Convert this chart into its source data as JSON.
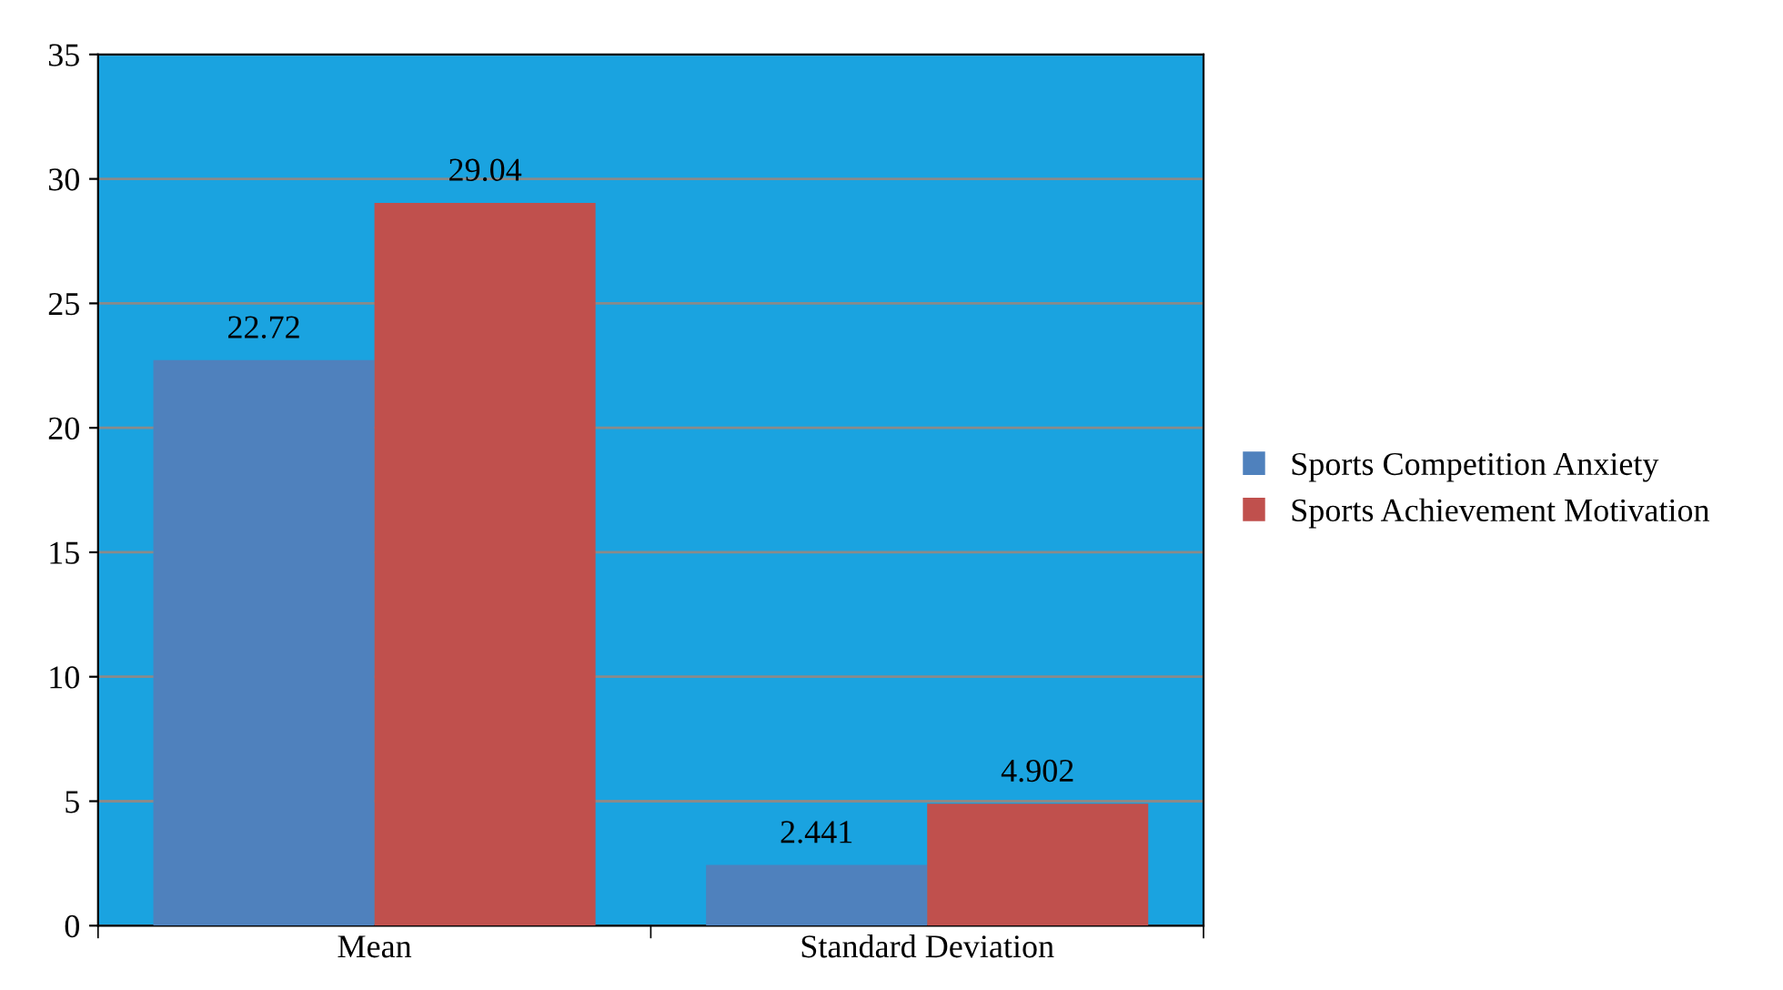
{
  "chart_data": {
    "type": "bar",
    "categories": [
      "Mean",
      "Standard Deviation"
    ],
    "series": [
      {
        "name": "Sports Competition Anxiety",
        "color": "#4f81bd",
        "values": [
          22.72,
          2.441
        ]
      },
      {
        "name": "Sports Achievement Motivation",
        "color": "#c0504d",
        "values": [
          29.04,
          4.902
        ]
      }
    ],
    "ylim": [
      0,
      35
    ],
    "yticks": [
      0,
      5,
      10,
      15,
      20,
      25,
      30,
      35
    ],
    "grid": "y",
    "legend": "right",
    "data_labels": true
  }
}
